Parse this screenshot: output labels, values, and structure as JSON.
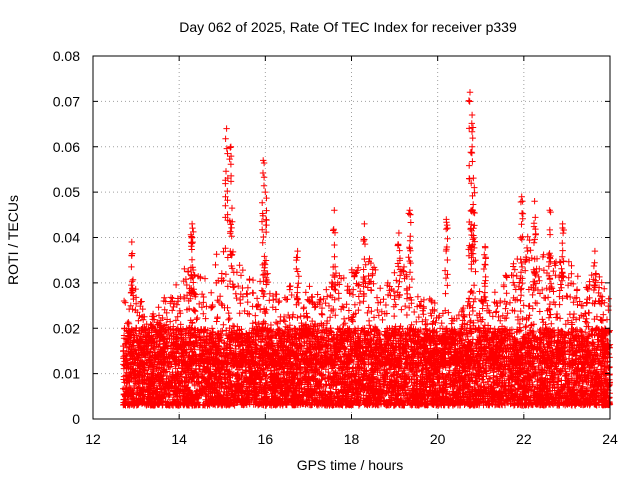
{
  "chart_data": {
    "type": "scatter",
    "title": "Day 062 of 2025, Rate Of TEC Index for receiver p339",
    "xlabel": "GPS time / hours",
    "ylabel": "ROTI / TECUs",
    "xlim": [
      12,
      24
    ],
    "ylim": [
      0,
      0.08
    ],
    "x_ticks": [
      "12",
      "14",
      "16",
      "18",
      "20",
      "22",
      "24"
    ],
    "y_ticks": [
      "0",
      "0.01",
      "0.02",
      "0.03",
      "0.04",
      "0.05",
      "0.06",
      "0.07",
      "0.08"
    ],
    "grid": true,
    "marker": "+",
    "color": "#ff0000",
    "coverage_x": [
      12.7,
      24.0
    ],
    "baseline_band": [
      0.003,
      0.02
    ],
    "spikes": [
      {
        "x": 12.9,
        "y": 0.039
      },
      {
        "x": 14.3,
        "y": 0.043
      },
      {
        "x": 14.3,
        "y": 0.04
      },
      {
        "x": 15.1,
        "y": 0.064
      },
      {
        "x": 15.2,
        "y": 0.06
      },
      {
        "x": 15.95,
        "y": 0.057
      },
      {
        "x": 16.0,
        "y": 0.05
      },
      {
        "x": 16.75,
        "y": 0.037
      },
      {
        "x": 17.6,
        "y": 0.046
      },
      {
        "x": 18.3,
        "y": 0.043
      },
      {
        "x": 19.1,
        "y": 0.041
      },
      {
        "x": 19.35,
        "y": 0.046
      },
      {
        "x": 20.2,
        "y": 0.044
      },
      {
        "x": 20.75,
        "y": 0.072
      },
      {
        "x": 20.8,
        "y": 0.067
      },
      {
        "x": 20.8,
        "y": 0.06
      },
      {
        "x": 20.85,
        "y": 0.051
      },
      {
        "x": 21.1,
        "y": 0.038
      },
      {
        "x": 21.95,
        "y": 0.049
      },
      {
        "x": 22.25,
        "y": 0.048
      },
      {
        "x": 22.6,
        "y": 0.046
      },
      {
        "x": 22.9,
        "y": 0.043
      },
      {
        "x": 23.65,
        "y": 0.037
      }
    ],
    "envelope": [
      {
        "x": 12.75,
        "y": 0.024
      },
      {
        "x": 13.0,
        "y": 0.03
      },
      {
        "x": 13.3,
        "y": 0.022
      },
      {
        "x": 13.6,
        "y": 0.026
      },
      {
        "x": 13.9,
        "y": 0.03
      },
      {
        "x": 14.1,
        "y": 0.035
      },
      {
        "x": 14.4,
        "y": 0.033
      },
      {
        "x": 14.7,
        "y": 0.03
      },
      {
        "x": 15.0,
        "y": 0.042
      },
      {
        "x": 15.2,
        "y": 0.045
      },
      {
        "x": 15.5,
        "y": 0.034
      },
      {
        "x": 15.8,
        "y": 0.03
      },
      {
        "x": 16.0,
        "y": 0.034
      },
      {
        "x": 16.3,
        "y": 0.028
      },
      {
        "x": 16.6,
        "y": 0.03
      },
      {
        "x": 17.0,
        "y": 0.03
      },
      {
        "x": 17.3,
        "y": 0.027
      },
      {
        "x": 17.6,
        "y": 0.032
      },
      {
        "x": 18.0,
        "y": 0.034
      },
      {
        "x": 18.4,
        "y": 0.036
      },
      {
        "x": 18.8,
        "y": 0.03
      },
      {
        "x": 19.2,
        "y": 0.035
      },
      {
        "x": 19.6,
        "y": 0.028
      },
      {
        "x": 20.0,
        "y": 0.026
      },
      {
        "x": 20.4,
        "y": 0.022
      },
      {
        "x": 20.8,
        "y": 0.03
      },
      {
        "x": 21.2,
        "y": 0.026
      },
      {
        "x": 21.6,
        "y": 0.032
      },
      {
        "x": 22.0,
        "y": 0.04
      },
      {
        "x": 22.3,
        "y": 0.041
      },
      {
        "x": 22.6,
        "y": 0.034
      },
      {
        "x": 23.0,
        "y": 0.036
      },
      {
        "x": 23.4,
        "y": 0.03
      },
      {
        "x": 23.7,
        "y": 0.033
      },
      {
        "x": 24.0,
        "y": 0.026
      }
    ]
  }
}
